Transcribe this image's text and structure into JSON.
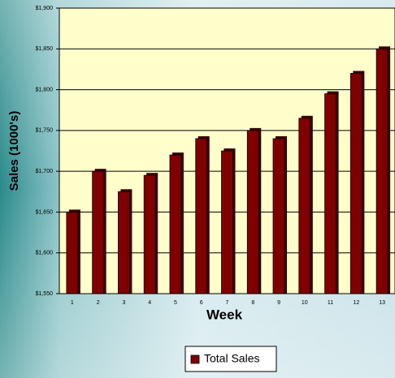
{
  "chart_data": {
    "type": "bar",
    "x_label": "Week",
    "y_label": "Sales (1000's)",
    "categories": [
      "1",
      "2",
      "3",
      "4",
      "5",
      "6",
      "7",
      "8",
      "9",
      "10",
      "11",
      "12",
      "13"
    ],
    "series": [
      {
        "name": "Total Sales",
        "color": "#800000",
        "values": [
          1650,
          1700,
          1675,
          1695,
          1720,
          1740,
          1725,
          1750,
          1740,
          1765,
          1795,
          1820,
          1850
        ]
      }
    ],
    "ylim": [
      1550,
      1900
    ],
    "yticks": [
      {
        "value": 1550,
        "label": "$1,550"
      },
      {
        "value": 1600,
        "label": "$1,600"
      },
      {
        "value": 1650,
        "label": "$1,650"
      },
      {
        "value": 1700,
        "label": "$1,700"
      },
      {
        "value": 1750,
        "label": "$1,750"
      },
      {
        "value": 1800,
        "label": "$1,800"
      },
      {
        "value": 1850,
        "label": "$1,850"
      },
      {
        "value": 1900,
        "label": "$1,900"
      }
    ],
    "grid": true,
    "legend": "bottom"
  }
}
